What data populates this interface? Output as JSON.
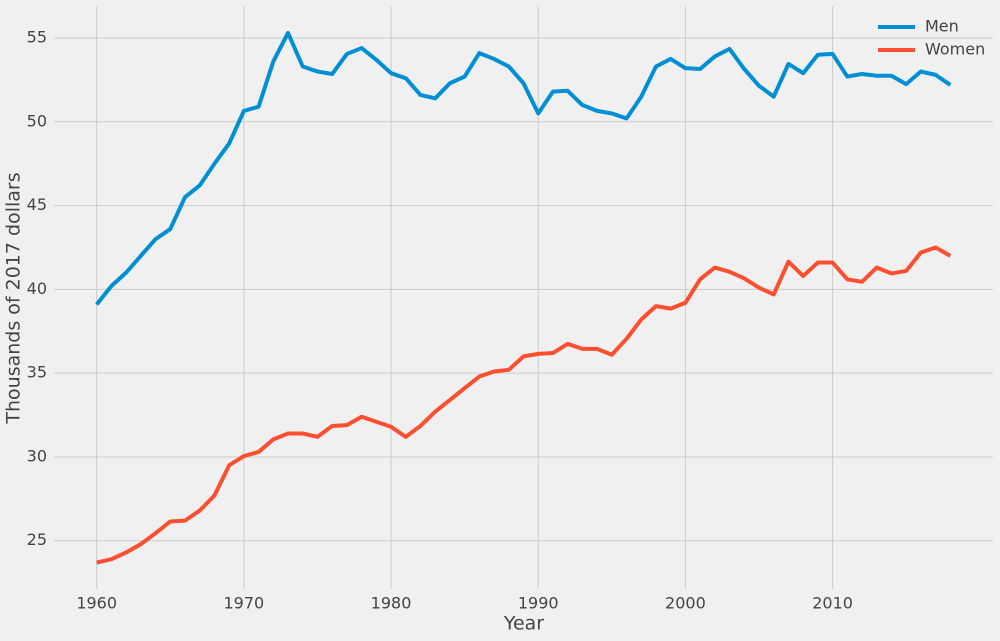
{
  "chart_data": {
    "type": "line",
    "x_label": "Year",
    "y_label": "Thousands of 2017 dollars",
    "x": [
      1960,
      1961,
      1962,
      1963,
      1964,
      1965,
      1966,
      1967,
      1968,
      1969,
      1970,
      1971,
      1972,
      1973,
      1974,
      1975,
      1976,
      1977,
      1978,
      1979,
      1980,
      1981,
      1982,
      1983,
      1984,
      1985,
      1986,
      1987,
      1988,
      1989,
      1990,
      1991,
      1992,
      1993,
      1994,
      1995,
      1996,
      1997,
      1998,
      1999,
      2000,
      2001,
      2002,
      2003,
      2004,
      2005,
      2006,
      2007,
      2008,
      2009,
      2010,
      2011,
      2012,
      2013,
      2014,
      2015,
      2016,
      2017,
      2018
    ],
    "series": [
      {
        "name": "Men",
        "color": "#008fd5",
        "values": [
          39.1,
          40.2,
          41.0,
          42.0,
          43.0,
          43.6,
          45.5,
          46.2,
          47.5,
          48.7,
          50.65,
          50.9,
          53.6,
          55.3,
          53.3,
          53.0,
          52.85,
          54.05,
          54.4,
          53.7,
          52.9,
          52.6,
          51.6,
          51.4,
          52.3,
          52.7,
          54.1,
          53.75,
          53.3,
          52.3,
          50.5,
          51.8,
          51.85,
          51.0,
          50.65,
          50.5,
          50.2,
          51.5,
          53.3,
          53.75,
          53.2,
          53.15,
          53.9,
          54.35,
          53.15,
          52.15,
          51.5,
          53.45,
          52.9,
          54.0,
          54.05,
          52.7,
          52.85,
          52.75,
          52.75,
          52.25,
          53.0,
          52.8,
          52.2
        ]
      },
      {
        "name": "Women",
        "color": "#fc4f30",
        "values": [
          23.7,
          23.9,
          24.3,
          24.8,
          25.45,
          26.15,
          26.2,
          26.8,
          27.7,
          29.5,
          30.05,
          30.3,
          31.05,
          31.4,
          31.4,
          31.2,
          31.85,
          31.9,
          32.4,
          32.1,
          31.8,
          31.2,
          31.85,
          32.7,
          33.4,
          34.1,
          34.8,
          35.1,
          35.2,
          36.0,
          36.15,
          36.2,
          36.75,
          36.45,
          36.45,
          36.1,
          37.05,
          38.2,
          39.0,
          38.85,
          39.2,
          40.6,
          41.3,
          41.05,
          40.65,
          40.1,
          39.7,
          41.65,
          40.8,
          41.6,
          41.6,
          40.6,
          40.45,
          41.3,
          40.95,
          41.1,
          42.2,
          42.5,
          42.0
        ]
      }
    ],
    "xlim": [
      1957.1,
      2020.9
    ],
    "xticks": [
      1960,
      1970,
      1980,
      1990,
      2000,
      2010
    ],
    "ylim": [
      22.12,
      56.88
    ],
    "yticks": [
      25,
      30,
      35,
      40,
      45,
      50,
      55
    ],
    "grid": true,
    "legend": "upper-right"
  }
}
